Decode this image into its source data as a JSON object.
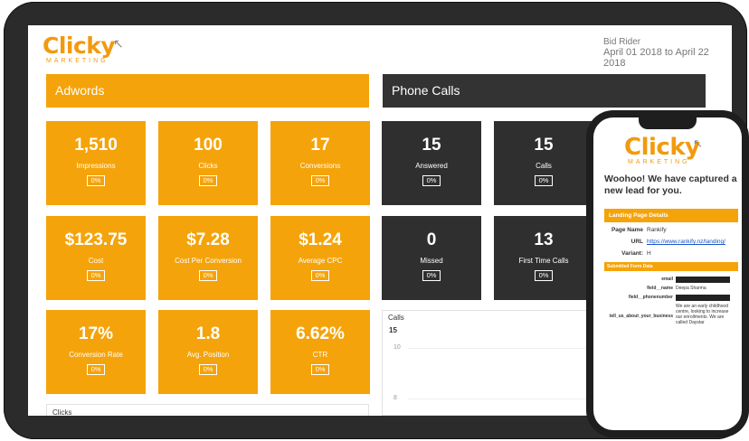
{
  "brand": {
    "word": "Clicky",
    "sub": "MARKETING",
    "color": "#f29a0e"
  },
  "header": {
    "client": "Bid Rider",
    "date_range": "April 01 2018 to April 22 2018"
  },
  "adwords": {
    "title": "Adwords",
    "tiles": [
      {
        "value": "1,510",
        "label": "Impressions",
        "pct": "0%"
      },
      {
        "value": "100",
        "label": "Clicks",
        "pct": "0%"
      },
      {
        "value": "17",
        "label": "Conversions",
        "pct": "0%"
      },
      {
        "value": "$123.75",
        "label": "Cost",
        "pct": "0%"
      },
      {
        "value": "$7.28",
        "label": "Cost Per Conversion",
        "pct": "0%"
      },
      {
        "value": "$1.24",
        "label": "Average CPC",
        "pct": "0%"
      },
      {
        "value": "17%",
        "label": "Conversion Rate",
        "pct": "0%"
      },
      {
        "value": "1.8",
        "label": "Avg. Position",
        "pct": "0%"
      },
      {
        "value": "6.62%",
        "label": "CTR",
        "pct": "0%"
      }
    ],
    "clicks_chart_title": "Clicks"
  },
  "phone_calls": {
    "title": "Phone Calls",
    "tiles": [
      {
        "value": "15",
        "label": "Answered",
        "pct": "0%"
      },
      {
        "value": "15",
        "label": "Calls",
        "pct": "0%"
      },
      {
        "value": "0",
        "label": "Missed",
        "pct": "0%"
      },
      {
        "value": "13",
        "label": "First Time Calls",
        "pct": "0%"
      }
    ],
    "chart": {
      "title": "Calls",
      "value": "15",
      "ticks": [
        "10",
        "8"
      ]
    }
  },
  "email": {
    "headline": "Woohoo! We have captured a new lead for you.",
    "landing_title": "Landing Page Details",
    "page_name_label": "Page Name",
    "page_name": "Rankify",
    "url_label": "URL",
    "url": "https://www.rankify.nz/landing/",
    "variant_label": "Variant:",
    "variant": "H",
    "form_title": "Submitted Form Data",
    "fields": [
      {
        "key": "email",
        "value": ""
      },
      {
        "key": "field__name",
        "value": "Deepa Sharma"
      },
      {
        "key": "field__phonenumber",
        "value": ""
      },
      {
        "key": "tell_us_about_your_business",
        "value": "We are an early childhood centre, looking to increase our enrollments. We are called Daystar"
      }
    ]
  },
  "colors": {
    "accent": "#f5a30a",
    "dark": "#2f2f2f"
  }
}
